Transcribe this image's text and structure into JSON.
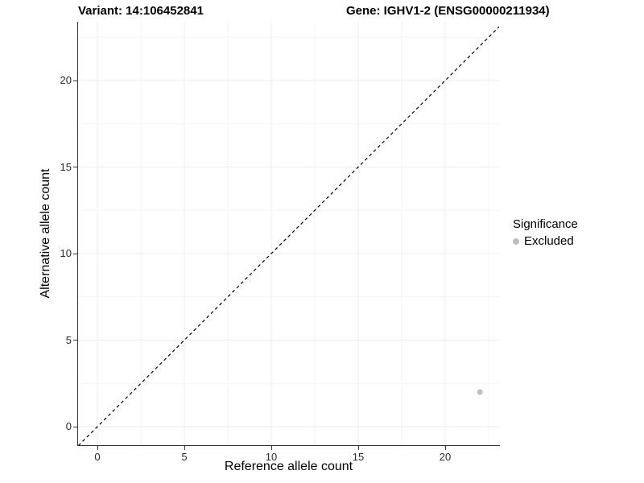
{
  "chart_data": {
    "type": "scatter",
    "title_left": "Variant: 14:106452841",
    "title_right": "Gene: IGHV1-2 (ENSG00000211934)",
    "xlabel": "Reference allele count",
    "ylabel": "Alternative allele count",
    "xticks": [
      0,
      5,
      10,
      15,
      20
    ],
    "yticks": [
      0,
      5,
      10,
      15,
      20
    ],
    "xlim": [
      -1.1,
      23.2
    ],
    "ylim": [
      -1.1,
      23.4
    ],
    "grid": {
      "major_color": "#ececec",
      "minor_color": "#f3f3f3",
      "minor_offset": 2.5
    },
    "reference_line": {
      "kind": "identity y = x",
      "style": "dashed",
      "color": "#000000"
    },
    "series": [
      {
        "name": "Excluded",
        "color": "#bdbdbd",
        "points": [
          {
            "x": 22,
            "y": 2
          }
        ]
      }
    ],
    "legend": {
      "title": "Significance",
      "position": "right-center",
      "entries": [
        {
          "label": "Excluded",
          "color": "#bdbdbd",
          "marker": "circle"
        }
      ]
    },
    "axis_color": "#333333",
    "background": "#ffffff"
  }
}
